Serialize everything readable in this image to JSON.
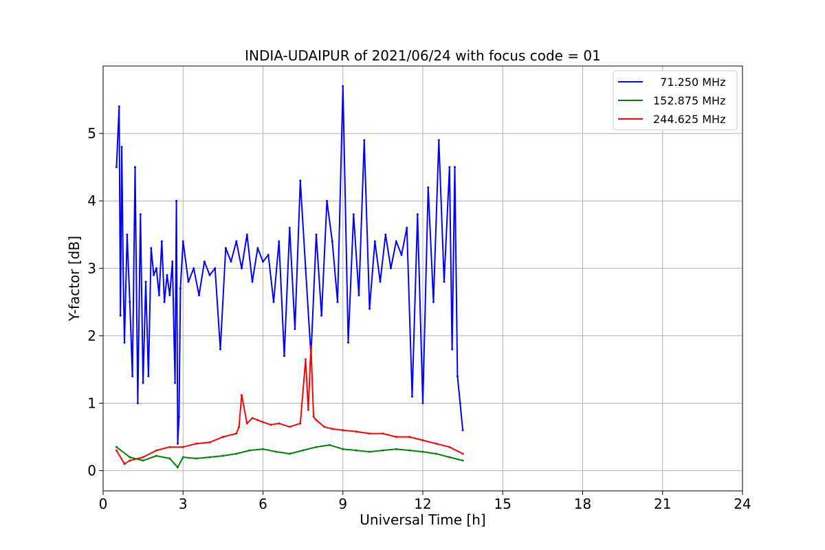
{
  "chart_data": {
    "type": "line",
    "title": "INDIA-UDAIPUR of 2021/06/24 with focus code = 01",
    "xlabel": "Universal Time [h]",
    "ylabel": "Y-factor [dB]",
    "xlim": [
      0,
      24
    ],
    "ylim": [
      -0.3,
      6.0
    ],
    "xticks": [
      0,
      3,
      6,
      9,
      12,
      15,
      18,
      21,
      24
    ],
    "yticks": [
      0,
      1,
      2,
      3,
      4,
      5
    ],
    "grid": true,
    "legend_position": "top-right",
    "series": [
      {
        "name": "  71.250 MHz",
        "color": "#0000ff",
        "x": [
          0.5,
          0.6,
          0.65,
          0.7,
          0.75,
          0.8,
          0.9,
          1.0,
          1.1,
          1.2,
          1.3,
          1.4,
          1.5,
          1.6,
          1.7,
          1.8,
          1.9,
          2.0,
          2.1,
          2.2,
          2.3,
          2.4,
          2.5,
          2.6,
          2.7,
          2.75,
          2.8,
          2.85,
          2.9,
          3.0,
          3.2,
          3.4,
          3.6,
          3.8,
          4.0,
          4.2,
          4.4,
          4.6,
          4.8,
          5.0,
          5.2,
          5.4,
          5.6,
          5.8,
          6.0,
          6.2,
          6.4,
          6.6,
          6.8,
          7.0,
          7.2,
          7.4,
          7.6,
          7.8,
          8.0,
          8.2,
          8.4,
          8.6,
          8.8,
          9.0,
          9.2,
          9.4,
          9.6,
          9.8,
          10.0,
          10.2,
          10.4,
          10.6,
          10.8,
          11.0,
          11.2,
          11.4,
          11.6,
          11.8,
          12.0,
          12.2,
          12.4,
          12.6,
          12.8,
          13.0,
          13.1,
          13.2,
          13.3,
          13.4,
          13.5
        ],
        "values": [
          4.5,
          5.4,
          2.3,
          4.8,
          3.0,
          1.9,
          3.5,
          2.5,
          1.4,
          4.5,
          1.0,
          3.8,
          1.3,
          2.8,
          1.4,
          3.3,
          2.9,
          3.0,
          2.6,
          3.4,
          2.5,
          2.9,
          2.6,
          3.1,
          1.3,
          4.0,
          0.4,
          0.8,
          2.7,
          3.4,
          2.8,
          3.0,
          2.6,
          3.1,
          2.9,
          3.0,
          1.8,
          3.3,
          3.1,
          3.4,
          3.0,
          3.5,
          2.8,
          3.3,
          3.1,
          3.2,
          2.5,
          3.4,
          1.7,
          3.6,
          2.1,
          4.3,
          3.0,
          1.7,
          3.5,
          2.3,
          4.0,
          3.4,
          2.5,
          5.7,
          1.9,
          3.8,
          2.6,
          4.9,
          2.4,
          3.4,
          2.8,
          3.5,
          3.0,
          3.4,
          3.2,
          3.6,
          1.1,
          3.8,
          1.0,
          4.2,
          2.5,
          4.9,
          2.8,
          4.5,
          1.8,
          4.5,
          1.4,
          1.0,
          0.6
        ]
      },
      {
        "name": "152.875 MHz",
        "color": "#008000",
        "x": [
          0.5,
          1.0,
          1.5,
          2.0,
          2.5,
          2.8,
          3.0,
          3.5,
          4.0,
          4.5,
          5.0,
          5.5,
          6.0,
          6.5,
          7.0,
          7.5,
          8.0,
          8.5,
          9.0,
          9.5,
          10.0,
          10.5,
          11.0,
          11.5,
          12.0,
          12.5,
          13.0,
          13.5
        ],
        "values": [
          0.35,
          0.2,
          0.15,
          0.22,
          0.18,
          0.05,
          0.2,
          0.18,
          0.2,
          0.22,
          0.25,
          0.3,
          0.32,
          0.28,
          0.25,
          0.3,
          0.35,
          0.38,
          0.32,
          0.3,
          0.28,
          0.3,
          0.32,
          0.3,
          0.28,
          0.25,
          0.2,
          0.15
        ]
      },
      {
        "name": "244.625 MHz",
        "color": "#ff0000",
        "x": [
          0.5,
          0.8,
          1.0,
          1.5,
          2.0,
          2.5,
          3.0,
          3.5,
          4.0,
          4.5,
          5.0,
          5.1,
          5.2,
          5.4,
          5.6,
          5.8,
          6.0,
          6.3,
          6.6,
          7.0,
          7.4,
          7.6,
          7.7,
          7.8,
          7.9,
          8.0,
          8.3,
          8.6,
          9.0,
          9.5,
          10.0,
          10.5,
          11.0,
          11.5,
          12.0,
          12.5,
          13.0,
          13.5
        ],
        "values": [
          0.3,
          0.1,
          0.15,
          0.2,
          0.3,
          0.35,
          0.35,
          0.4,
          0.42,
          0.5,
          0.55,
          0.65,
          1.12,
          0.7,
          0.78,
          0.75,
          0.72,
          0.68,
          0.7,
          0.65,
          0.7,
          1.65,
          0.9,
          1.85,
          0.8,
          0.75,
          0.65,
          0.62,
          0.6,
          0.58,
          0.55,
          0.55,
          0.5,
          0.5,
          0.45,
          0.4,
          0.35,
          0.25
        ]
      }
    ]
  }
}
